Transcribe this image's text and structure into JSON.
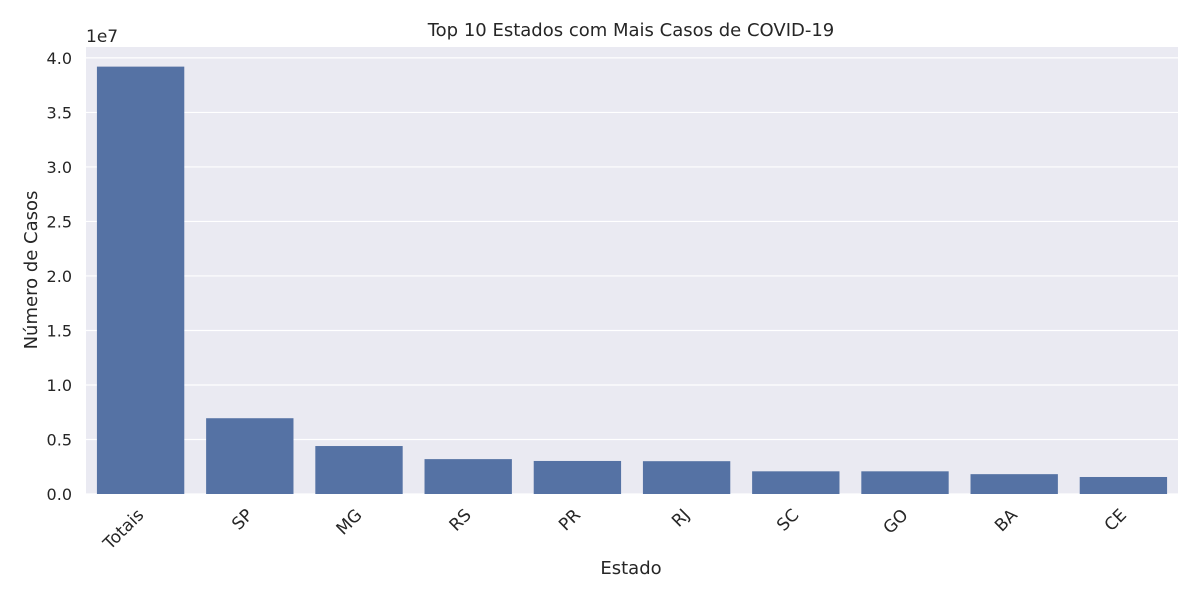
{
  "chart_data": {
    "type": "bar",
    "title": "Top 10 Estados com Mais Casos de COVID-19",
    "xlabel": "Estado",
    "ylabel": "Número de Casos",
    "scale_label": "1e7",
    "categories": [
      "Totais",
      "SP",
      "MG",
      "RS",
      "PR",
      "RJ",
      "SC",
      "GO",
      "BA",
      "CE"
    ],
    "values": [
      39200000,
      6950000,
      4400000,
      3200000,
      3030000,
      3010000,
      2080000,
      2080000,
      1820000,
      1560000
    ],
    "ylim": [
      0,
      41000000
    ],
    "yticks": [
      0,
      5000000,
      10000000,
      15000000,
      20000000,
      25000000,
      30000000,
      35000000,
      40000000
    ],
    "ytick_labels": [
      "0.0",
      "0.5",
      "1.0",
      "1.5",
      "2.0",
      "2.5",
      "3.0",
      "3.5",
      "4.0"
    ],
    "grid": true,
    "colors": {
      "bar": "#5572a4",
      "plot_bg": "#eaeaf2",
      "grid": "#ffffff"
    }
  }
}
